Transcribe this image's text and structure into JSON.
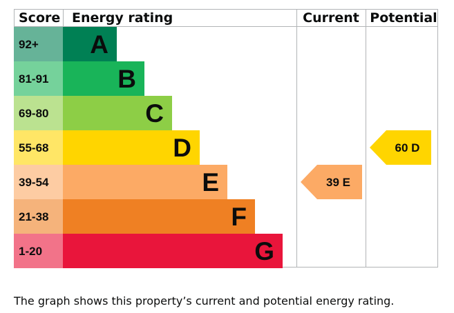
{
  "chart_data": {
    "type": "bar",
    "headers": {
      "score": "Score",
      "rating": "Energy rating",
      "current": "Current",
      "potential": "Potential"
    },
    "bands": [
      {
        "score": "92+",
        "letter": "A",
        "color": "#008054",
        "score_bg": "#66b398"
      },
      {
        "score": "81-91",
        "letter": "B",
        "color": "#19b459",
        "score_bg": "#75d29b"
      },
      {
        "score": "69-80",
        "letter": "C",
        "color": "#8dce46",
        "score_bg": "#bbe290"
      },
      {
        "score": "55-68",
        "letter": "D",
        "color": "#ffd500",
        "score_bg": "#ffe666"
      },
      {
        "score": "39-54",
        "letter": "E",
        "color": "#fcaa65",
        "score_bg": "#fdcca3"
      },
      {
        "score": "21-38",
        "letter": "F",
        "color": "#ef8023",
        "score_bg": "#f5b37b"
      },
      {
        "score": "1-20",
        "letter": "G",
        "color": "#e9153b",
        "score_bg": "#f27389"
      }
    ],
    "current": {
      "value": 39,
      "letter": "E",
      "label": "39 E",
      "color": "#fcaa65"
    },
    "potential": {
      "value": 60,
      "letter": "D",
      "label": "60 D",
      "color": "#ffd500"
    }
  },
  "caption": "The graph shows this property’s current and potential energy rating."
}
